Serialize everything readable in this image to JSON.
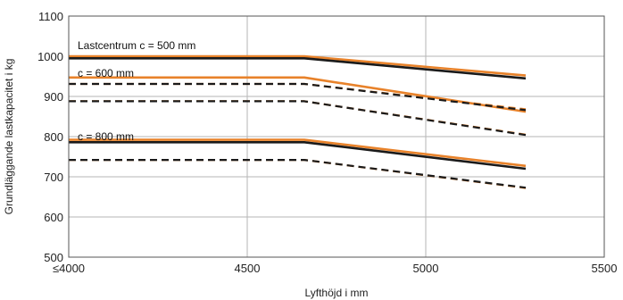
{
  "chart_data": {
    "type": "line",
    "xlabel": "Lyfthöjd i mm",
    "ylabel": "Grundläggande lastkapacitet i kg",
    "xlim": [
      4000,
      5500
    ],
    "ylim": [
      500,
      1100
    ],
    "xticks": [
      4000,
      4500,
      5000,
      5500
    ],
    "xtick_labels": [
      "≤4000",
      "4500",
      "5000",
      "5500"
    ],
    "yticks": [
      500,
      600,
      700,
      800,
      900,
      1000,
      1100
    ],
    "grid": true,
    "annotations": [
      {
        "text": "Lastcentrum c = 500 mm",
        "x": 4025,
        "y": 1027
      },
      {
        "text": "c = 600 mm",
        "x": 4025,
        "y": 958
      },
      {
        "text": "c = 800 mm",
        "x": 4025,
        "y": 800
      }
    ],
    "series": [
      {
        "style": "solid",
        "color": "#e8822a",
        "points": [
          [
            4000,
            1000
          ],
          [
            4660,
            1000
          ],
          [
            5280,
            952
          ]
        ]
      },
      {
        "style": "solid",
        "color": "#1a1a1a",
        "points": [
          [
            4000,
            995
          ],
          [
            4660,
            995
          ],
          [
            5280,
            945
          ]
        ]
      },
      {
        "style": "solid",
        "color": "#e8822a",
        "points": [
          [
            4000,
            947
          ],
          [
            4660,
            947
          ],
          [
            5280,
            862
          ]
        ]
      },
      {
        "style": "dashed",
        "color": "#e8822a",
        "points": [
          [
            4000,
            931
          ],
          [
            4660,
            931
          ],
          [
            5280,
            868
          ]
        ]
      },
      {
        "style": "dashed",
        "color": "#1a1a1a",
        "points": [
          [
            4000,
            931
          ],
          [
            4660,
            931
          ],
          [
            5280,
            866
          ]
        ]
      },
      {
        "style": "dashed",
        "color": "#e8822a",
        "points": [
          [
            4000,
            888
          ],
          [
            4660,
            888
          ],
          [
            5280,
            805
          ]
        ]
      },
      {
        "style": "dashed",
        "color": "#1a1a1a",
        "points": [
          [
            4000,
            888
          ],
          [
            4660,
            888
          ],
          [
            5280,
            804
          ]
        ]
      },
      {
        "style": "solid",
        "color": "#e8822a",
        "points": [
          [
            4000,
            792
          ],
          [
            4660,
            792
          ],
          [
            5280,
            727
          ]
        ]
      },
      {
        "style": "solid",
        "color": "#1a1a1a",
        "points": [
          [
            4000,
            786
          ],
          [
            4660,
            786
          ],
          [
            5280,
            720
          ]
        ]
      },
      {
        "style": "dashed",
        "color": "#e8822a",
        "points": [
          [
            4000,
            742
          ],
          [
            4660,
            742
          ],
          [
            5280,
            672
          ]
        ]
      },
      {
        "style": "dashed",
        "color": "#1a1a1a",
        "points": [
          [
            4000,
            742
          ],
          [
            4660,
            742
          ],
          [
            5280,
            673
          ]
        ]
      }
    ]
  }
}
